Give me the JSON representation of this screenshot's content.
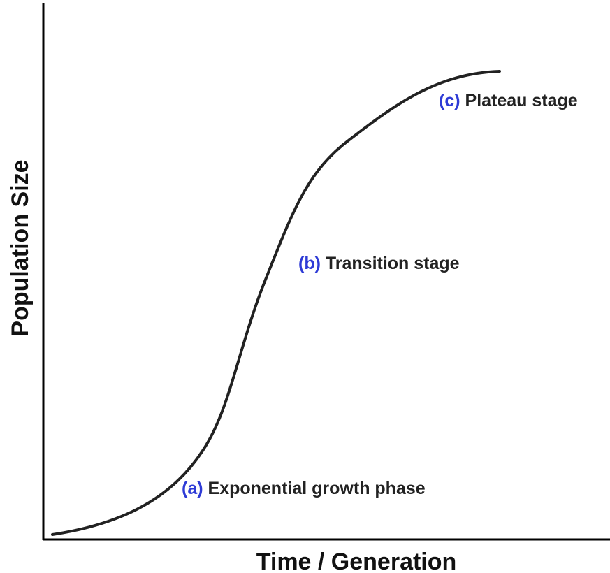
{
  "x_axis_label": "Time / Generation",
  "y_axis_label": "Population Size",
  "annotations": [
    {
      "tag": "(a)",
      "text": "Exponential growth phase"
    },
    {
      "tag": "(b)",
      "text": "Transition stage"
    },
    {
      "tag": "(c)",
      "text": "Plateau stage"
    }
  ]
}
